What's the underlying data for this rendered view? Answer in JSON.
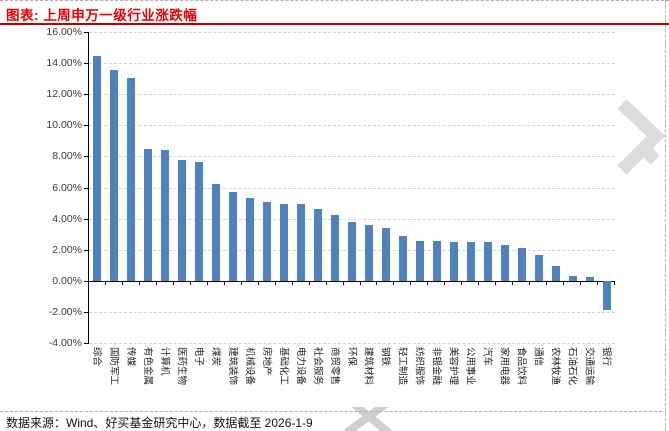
{
  "header": {
    "title": "图表: 上周申万一级行业涨跌幅"
  },
  "footer": {
    "text": "数据来源：Wind、好买基金研究中心，数据截至 2026-1-9"
  },
  "colors": {
    "bar": "#4f81bd",
    "title_red": "#e30000",
    "rule_red": "#c00000",
    "gridline": "#d2d2d2",
    "axis": "#000000",
    "watermark": "#dcdcdc"
  },
  "chart_data": {
    "type": "bar",
    "title": "上周申万一级行业涨跌幅",
    "xlabel": "",
    "ylabel": "",
    "ylim": [
      -4,
      16
    ],
    "yticks": [
      16,
      14,
      12,
      10,
      8,
      6,
      4,
      2,
      0,
      -2,
      -4
    ],
    "ytick_format": "0.00%",
    "grid": "horizontal-dashed",
    "legend": "none",
    "bar_color": "#4f81bd",
    "categories": [
      "综合",
      "国防军工",
      "传媒",
      "有色金属",
      "计算机",
      "医药生物",
      "电子",
      "煤炭",
      "建筑装饰",
      "机械设备",
      "房地产",
      "基础化工",
      "电力设备",
      "社会服务",
      "商贸零售",
      "环保",
      "建筑材料",
      "钢铁",
      "轻工制造",
      "纺织服饰",
      "非银金融",
      "美容护理",
      "公用事业",
      "汽车",
      "家用电器",
      "食品饮料",
      "通信",
      "农林牧渔",
      "石油石化",
      "交通运输",
      "银行"
    ],
    "values": [
      14.45,
      13.55,
      13.05,
      8.5,
      8.4,
      7.8,
      7.65,
      6.25,
      5.7,
      5.3,
      5.05,
      4.95,
      4.95,
      4.6,
      4.2,
      3.8,
      3.6,
      3.4,
      2.9,
      2.55,
      2.55,
      2.5,
      2.5,
      2.5,
      2.3,
      2.1,
      1.65,
      0.95,
      0.3,
      0.25,
      -1.9
    ]
  }
}
